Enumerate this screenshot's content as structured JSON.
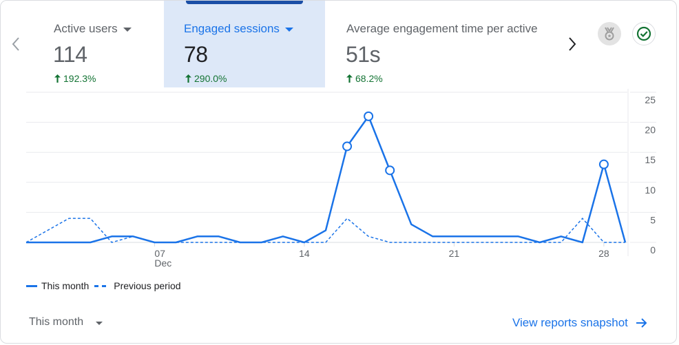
{
  "nav": {
    "prev_icon": "chevron-left-icon",
    "next_icon": "chevron-right-icon"
  },
  "tabs": [
    {
      "label": "Active users",
      "value": "114",
      "change": "192.3%",
      "trend": "up",
      "selected": false
    },
    {
      "label": "Engaged sessions",
      "value": "78",
      "change": "290.0%",
      "trend": "up",
      "selected": true
    },
    {
      "label": "Average engagement time per active",
      "value": "51s",
      "change": "68.2%",
      "trend": "up",
      "selected": false
    }
  ],
  "header_icons": {
    "insights": "medal-icon",
    "status": "check-circle-icon"
  },
  "legend": {
    "current": "This month",
    "previous": "Previous period"
  },
  "footer": {
    "period_label": "This month",
    "snapshot_link": "View reports snapshot"
  },
  "colors": {
    "accent": "#1a73e8",
    "selected_bg": "#dde8f8",
    "selected_bar": "#1a4ea6",
    "positive": "#137333",
    "text_muted": "#5f6368",
    "gridline": "#e0e0e0"
  },
  "chart_data": {
    "type": "line",
    "title": "Engaged sessions",
    "xlabel": "",
    "ylabel": "",
    "x": [
      "Dec 1",
      "Dec 2",
      "Dec 3",
      "Dec 4",
      "Dec 5",
      "Dec 6",
      "Dec 7",
      "Dec 8",
      "Dec 9",
      "Dec 10",
      "Dec 11",
      "Dec 12",
      "Dec 13",
      "Dec 14",
      "Dec 15",
      "Dec 16",
      "Dec 17",
      "Dec 18",
      "Dec 19",
      "Dec 20",
      "Dec 21",
      "Dec 22",
      "Dec 23",
      "Dec 24",
      "Dec 25",
      "Dec 26",
      "Dec 27",
      "Dec 28",
      "Dec 29"
    ],
    "x_ticks": [
      {
        "label": "07",
        "sub": "Dec",
        "index": 6
      },
      {
        "label": "14",
        "sub": "",
        "index": 13
      },
      {
        "label": "21",
        "sub": "",
        "index": 20
      },
      {
        "label": "28",
        "sub": "",
        "index": 27
      }
    ],
    "y_ticks": [
      0,
      5,
      10,
      15,
      20,
      25
    ],
    "ylim": [
      0,
      25
    ],
    "grid": true,
    "legend_position": "bottom-left",
    "series": [
      {
        "name": "This month",
        "style": "solid",
        "values": [
          0,
          0,
          0,
          0,
          1,
          1,
          0,
          0,
          1,
          1,
          0,
          0,
          1,
          0,
          2,
          16,
          21,
          12,
          3,
          1,
          1,
          1,
          1,
          1,
          0,
          1,
          0,
          13,
          0
        ],
        "markers": [
          15,
          16,
          17,
          27
        ]
      },
      {
        "name": "Previous period",
        "style": "dashed",
        "values": [
          0,
          2,
          4,
          4,
          0,
          1,
          0,
          0,
          0,
          0,
          0,
          0,
          0,
          0,
          0,
          4,
          1,
          0,
          0,
          0,
          0,
          0,
          0,
          0,
          0,
          0,
          4,
          0,
          0
        ]
      }
    ]
  }
}
